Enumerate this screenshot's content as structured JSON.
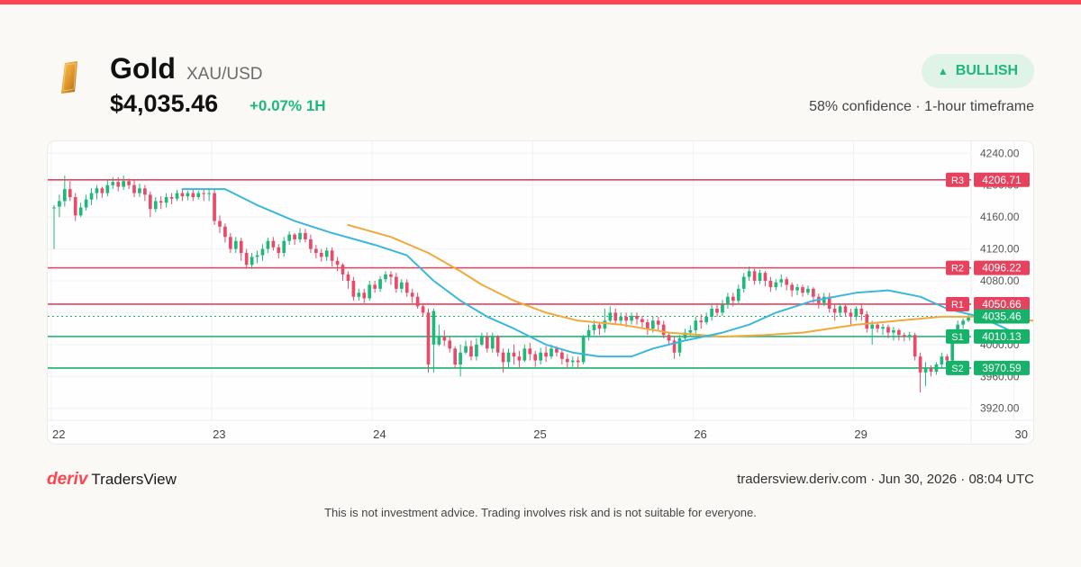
{
  "colors": {
    "accent_red": "#ff444f",
    "bullish_green": "#1db87a",
    "bearish_red": "#e84a6a",
    "resistance": "#e6425e",
    "support": "#17b26a",
    "ma_fast": "#3bb7dc",
    "ma_slow": "#f0a93b",
    "badge_bg": "#dff3e7",
    "gold": "#e8a33a"
  },
  "header": {
    "logo_icon": "gold-bar-icon",
    "asset_name": "Gold",
    "pair": "XAU/USD",
    "price": "$4,035.46",
    "change": "+0.07% 1H"
  },
  "signal": {
    "label": "BULLISH",
    "icon": "triangle-up-icon",
    "info": "58% confidence · 1-hour timeframe"
  },
  "chart_data": {
    "type": "candlestick",
    "y_ticks": [
      "4240.00",
      "4200.00",
      "4160.00",
      "4120.00",
      "4080.00",
      "4040.00",
      "4000.00",
      "3960.00",
      "3920.00"
    ],
    "ylim": [
      3905,
      4255
    ],
    "x_ticks": [
      "22",
      "23",
      "24",
      "25",
      "26",
      "29",
      "30"
    ],
    "grid": true,
    "levels": [
      {
        "name": "R3",
        "value": "4206.71",
        "kind": "resistance"
      },
      {
        "name": "R2",
        "value": "4096.22",
        "kind": "resistance"
      },
      {
        "name": "R1",
        "value": "4050.66",
        "kind": "resistance"
      },
      {
        "name": "S1",
        "value": "4010.13",
        "kind": "support"
      },
      {
        "name": "S2",
        "value": "3970.59",
        "kind": "support"
      }
    ],
    "current_price": "4035.46",
    "candles": [
      [
        4172,
        4171,
        4120,
        4175,
        1
      ],
      [
        4173,
        4180,
        4160,
        4188,
        1
      ],
      [
        4180,
        4195,
        4173,
        4212,
        1
      ],
      [
        4195,
        4185,
        4180,
        4205,
        0
      ],
      [
        4185,
        4162,
        4155,
        4190,
        0
      ],
      [
        4162,
        4172,
        4160,
        4178,
        1
      ],
      [
        4172,
        4182,
        4168,
        4188,
        1
      ],
      [
        4182,
        4190,
        4175,
        4196,
        1
      ],
      [
        4190,
        4196,
        4182,
        4200,
        1
      ],
      [
        4196,
        4190,
        4184,
        4198,
        0
      ],
      [
        4190,
        4200,
        4186,
        4206,
        1
      ],
      [
        4200,
        4204,
        4195,
        4210,
        1
      ],
      [
        4204,
        4198,
        4192,
        4210,
        0
      ],
      [
        4198,
        4205,
        4194,
        4212,
        1
      ],
      [
        4205,
        4200,
        4195,
        4208,
        0
      ],
      [
        4200,
        4190,
        4185,
        4206,
        0
      ],
      [
        4190,
        4196,
        4185,
        4202,
        1
      ],
      [
        4196,
        4188,
        4180,
        4200,
        0
      ],
      [
        4188,
        4170,
        4160,
        4192,
        0
      ],
      [
        4170,
        4180,
        4166,
        4185,
        1
      ],
      [
        4180,
        4178,
        4170,
        4186,
        0
      ],
      [
        4178,
        4185,
        4172,
        4190,
        1
      ],
      [
        4185,
        4183,
        4176,
        4190,
        0
      ],
      [
        4183,
        4190,
        4180,
        4194,
        1
      ],
      [
        4190,
        4186,
        4180,
        4195,
        0
      ],
      [
        4186,
        4190,
        4181,
        4193,
        1
      ],
      [
        4190,
        4185,
        4180,
        4195,
        0
      ],
      [
        4185,
        4190,
        4182,
        4193,
        1
      ],
      [
        4190,
        4189,
        4180,
        4196,
        0
      ],
      [
        4189,
        4190,
        4180,
        4196,
        1
      ],
      [
        4190,
        4155,
        4150,
        4195,
        0
      ],
      [
        4155,
        4148,
        4140,
        4162,
        0
      ],
      [
        4148,
        4135,
        4128,
        4152,
        0
      ],
      [
        4135,
        4120,
        4115,
        4140,
        0
      ],
      [
        4120,
        4130,
        4115,
        4135,
        1
      ],
      [
        4130,
        4115,
        4105,
        4134,
        0
      ],
      [
        4115,
        4100,
        4095,
        4120,
        0
      ],
      [
        4100,
        4110,
        4095,
        4115,
        1
      ],
      [
        4110,
        4112,
        4102,
        4118,
        1
      ],
      [
        4112,
        4120,
        4105,
        4126,
        1
      ],
      [
        4120,
        4130,
        4115,
        4134,
        1
      ],
      [
        4130,
        4122,
        4118,
        4135,
        0
      ],
      [
        4122,
        4115,
        4108,
        4126,
        0
      ],
      [
        4115,
        4130,
        4110,
        4135,
        1
      ],
      [
        4130,
        4138,
        4125,
        4142,
        1
      ],
      [
        4138,
        4132,
        4125,
        4140,
        0
      ],
      [
        4132,
        4140,
        4128,
        4146,
        1
      ],
      [
        4140,
        4132,
        4128,
        4145,
        0
      ],
      [
        4132,
        4120,
        4115,
        4138,
        0
      ],
      [
        4120,
        4115,
        4108,
        4125,
        0
      ],
      [
        4115,
        4110,
        4104,
        4120,
        0
      ],
      [
        4110,
        4118,
        4105,
        4122,
        1
      ],
      [
        4118,
        4105,
        4098,
        4122,
        0
      ],
      [
        4105,
        4100,
        4092,
        4110,
        0
      ],
      [
        4100,
        4088,
        4080,
        4102,
        0
      ],
      [
        4088,
        4080,
        4070,
        4092,
        0
      ],
      [
        4080,
        4060,
        4055,
        4085,
        0
      ],
      [
        4060,
        4065,
        4055,
        4070,
        1
      ],
      [
        4065,
        4058,
        4052,
        4070,
        0
      ],
      [
        4058,
        4075,
        4055,
        4080,
        1
      ],
      [
        4075,
        4070,
        4065,
        4080,
        0
      ],
      [
        4070,
        4082,
        4066,
        4086,
        1
      ],
      [
        4082,
        4088,
        4078,
        4092,
        1
      ],
      [
        4088,
        4085,
        4075,
        4092,
        0
      ],
      [
        4085,
        4070,
        4065,
        4090,
        0
      ],
      [
        4070,
        4078,
        4065,
        4082,
        1
      ],
      [
        4078,
        4065,
        4060,
        4082,
        0
      ],
      [
        4065,
        4060,
        4052,
        4070,
        0
      ],
      [
        4060,
        4048,
        4045,
        4065,
        0
      ],
      [
        4048,
        4040,
        4035,
        4052,
        0
      ],
      [
        4040,
        3975,
        3965,
        4045,
        0
      ],
      [
        4042,
        4000,
        3965,
        4045,
        1
      ],
      [
        4000,
        4010,
        3998,
        4025,
        1
      ],
      [
        4010,
        4005,
        3998,
        4018,
        0
      ],
      [
        4005,
        3995,
        3990,
        4010,
        0
      ],
      [
        3995,
        3975,
        3970,
        3998,
        0
      ],
      [
        3975,
        3990,
        3960,
        4000,
        1
      ],
      [
        3990,
        3998,
        3988,
        4005,
        1
      ],
      [
        3998,
        3985,
        3980,
        4005,
        0
      ],
      [
        3985,
        4000,
        3980,
        4008,
        1
      ],
      [
        4000,
        4010,
        3998,
        4015,
        1
      ],
      [
        4010,
        3995,
        3990,
        4015,
        0
      ],
      [
        3995,
        4010,
        3990,
        4015,
        1
      ],
      [
        4010,
        3990,
        3985,
        4012,
        0
      ],
      [
        3990,
        3978,
        3965,
        3995,
        0
      ],
      [
        3978,
        3990,
        3970,
        3995,
        1
      ],
      [
        3990,
        3985,
        3975,
        4000,
        0
      ],
      [
        3985,
        3980,
        3970,
        3992,
        0
      ],
      [
        3980,
        3995,
        3978,
        4000,
        1
      ],
      [
        3995,
        3988,
        3980,
        4002,
        0
      ],
      [
        3988,
        3980,
        3972,
        3992,
        0
      ],
      [
        3980,
        3990,
        3975,
        3996,
        1
      ],
      [
        3990,
        3985,
        3978,
        3998,
        0
      ],
      [
        3985,
        3995,
        3982,
        4000,
        1
      ],
      [
        3995,
        3990,
        3985,
        3998,
        0
      ],
      [
        3990,
        3982,
        3975,
        3995,
        0
      ],
      [
        3982,
        3978,
        3970,
        3988,
        0
      ],
      [
        3978,
        3980,
        3972,
        3985,
        1
      ],
      [
        3980,
        3978,
        3970,
        3985,
        0
      ],
      [
        3978,
        4010,
        3975,
        4012,
        1
      ],
      [
        4010,
        4018,
        4005,
        4025,
        1
      ],
      [
        4018,
        4025,
        4012,
        4030,
        1
      ],
      [
        4025,
        4020,
        4012,
        4028,
        0
      ],
      [
        4020,
        4030,
        4015,
        4045,
        1
      ],
      [
        4030,
        4040,
        4028,
        4048,
        1
      ],
      [
        4040,
        4030,
        4025,
        4045,
        0
      ],
      [
        4030,
        4035,
        4025,
        4040,
        1
      ],
      [
        4035,
        4030,
        4022,
        4040,
        0
      ],
      [
        4030,
        4036,
        4025,
        4040,
        1
      ],
      [
        4036,
        4032,
        4025,
        4040,
        0
      ],
      [
        4032,
        4028,
        4020,
        4036,
        0
      ],
      [
        4028,
        4020,
        4012,
        4032,
        0
      ],
      [
        4020,
        4030,
        4015,
        4035,
        1
      ],
      [
        4030,
        4025,
        4018,
        4035,
        0
      ],
      [
        4025,
        4012,
        4008,
        4030,
        0
      ],
      [
        4012,
        4005,
        4000,
        4015,
        0
      ],
      [
        4005,
        3990,
        3982,
        4010,
        0
      ],
      [
        3990,
        4008,
        3985,
        4012,
        1
      ],
      [
        4008,
        4015,
        4005,
        4020,
        1
      ],
      [
        4015,
        4018,
        4010,
        4024,
        1
      ],
      [
        4018,
        4030,
        4012,
        4035,
        1
      ],
      [
        4030,
        4028,
        4020,
        4038,
        0
      ],
      [
        4028,
        4035,
        4025,
        4040,
        1
      ],
      [
        4035,
        4045,
        4030,
        4050,
        1
      ],
      [
        4045,
        4040,
        4035,
        4052,
        0
      ],
      [
        4040,
        4050,
        4036,
        4056,
        1
      ],
      [
        4050,
        4060,
        4045,
        4065,
        1
      ],
      [
        4060,
        4055,
        4048,
        4065,
        0
      ],
      [
        4055,
        4070,
        4050,
        4075,
        1
      ],
      [
        4070,
        4085,
        4065,
        4090,
        1
      ],
      [
        4085,
        4092,
        4080,
        4098,
        1
      ],
      [
        4092,
        4080,
        4075,
        4095,
        0
      ],
      [
        4080,
        4090,
        4076,
        4094,
        1
      ],
      [
        4090,
        4080,
        4073,
        4092,
        0
      ],
      [
        4080,
        4072,
        4066,
        4085,
        0
      ],
      [
        4072,
        4078,
        4068,
        4082,
        1
      ],
      [
        4078,
        4082,
        4072,
        4088,
        1
      ],
      [
        4082,
        4075,
        4068,
        4085,
        0
      ],
      [
        4075,
        4068,
        4060,
        4078,
        0
      ],
      [
        4068,
        4072,
        4062,
        4076,
        1
      ],
      [
        4072,
        4065,
        4060,
        4075,
        0
      ],
      [
        4065,
        4070,
        4062,
        4074,
        1
      ],
      [
        4070,
        4060,
        4052,
        4072,
        0
      ],
      [
        4060,
        4052,
        4045,
        4064,
        0
      ],
      [
        4052,
        4060,
        4048,
        4065,
        1
      ],
      [
        4060,
        4045,
        4040,
        4065,
        0
      ],
      [
        4045,
        4040,
        4030,
        4050,
        0
      ],
      [
        4040,
        4048,
        4035,
        4052,
        1
      ],
      [
        4048,
        4040,
        4035,
        4050,
        0
      ],
      [
        4040,
        4035,
        4025,
        4045,
        0
      ],
      [
        4035,
        4045,
        4030,
        4048,
        1
      ],
      [
        4045,
        4038,
        4030,
        4050,
        0
      ],
      [
        4038,
        4020,
        4015,
        4042,
        0
      ],
      [
        4020,
        4025,
        4000,
        4030,
        1
      ],
      [
        4025,
        4020,
        4015,
        4028,
        0
      ],
      [
        4020,
        4022,
        4012,
        4026,
        1
      ],
      [
        4022,
        4015,
        4008,
        4025,
        0
      ],
      [
        4015,
        4018,
        4005,
        4022,
        1
      ],
      [
        4018,
        4012,
        4005,
        4020,
        0
      ],
      [
        4012,
        4010,
        4004,
        4015,
        0
      ],
      [
        4010,
        4012,
        4005,
        4016,
        1
      ],
      [
        4012,
        3985,
        3980,
        4015,
        0
      ],
      [
        3985,
        3965,
        3940,
        3990,
        0
      ],
      [
        3965,
        3970,
        3948,
        3978,
        1
      ],
      [
        3970,
        3966,
        3960,
        3974,
        0
      ],
      [
        3966,
        3975,
        3962,
        3978,
        1
      ],
      [
        3975,
        3985,
        3970,
        3990,
        1
      ],
      [
        3985,
        3980,
        3974,
        3988,
        0
      ],
      [
        3980,
        4010,
        3976,
        4014,
        1
      ],
      [
        4010,
        4025,
        4005,
        4030,
        1
      ],
      [
        4025,
        4030,
        4020,
        4033,
        1
      ],
      [
        4030,
        4035,
        4028,
        4038,
        1
      ]
    ],
    "ma_fast": [
      [
        24,
        4195
      ],
      [
        32,
        4195
      ],
      [
        38,
        4175
      ],
      [
        45,
        4155
      ],
      [
        52,
        4140
      ],
      [
        60,
        4125
      ],
      [
        66,
        4112
      ],
      [
        71,
        4080
      ],
      [
        76,
        4055
      ],
      [
        81,
        4035
      ],
      [
        86,
        4020
      ],
      [
        92,
        4000
      ],
      [
        97,
        3990
      ],
      [
        102,
        3985
      ],
      [
        108,
        3985
      ],
      [
        112,
        3995
      ],
      [
        118,
        4005
      ],
      [
        125,
        4015
      ],
      [
        130,
        4025
      ],
      [
        135,
        4040
      ],
      [
        142,
        4055
      ],
      [
        150,
        4065
      ],
      [
        156,
        4068
      ],
      [
        162,
        4060
      ],
      [
        167,
        4045
      ],
      [
        173,
        4035
      ],
      [
        178,
        4020
      ],
      [
        182,
        4006
      ]
    ],
    "ma_slow": [
      [
        55,
        4150
      ],
      [
        63,
        4135
      ],
      [
        70,
        4115
      ],
      [
        76,
        4092
      ],
      [
        80,
        4075
      ],
      [
        86,
        4055
      ],
      [
        92,
        4040
      ],
      [
        98,
        4030
      ],
      [
        106,
        4025
      ],
      [
        115,
        4015
      ],
      [
        125,
        4010
      ],
      [
        133,
        4012
      ],
      [
        140,
        4015
      ],
      [
        150,
        4025
      ],
      [
        158,
        4030
      ],
      [
        166,
        4035
      ],
      [
        175,
        4035
      ],
      [
        183,
        4030
      ],
      [
        186,
        4030
      ]
    ]
  },
  "footer": {
    "brand_deriv": "deriv",
    "brand_tv": "TradersView",
    "info": "tradersview.deriv.com · Jun 30, 2026 · 08:04 UTC",
    "disclaimer": "This is not investment advice. Trading involves risk and is not suitable for everyone."
  }
}
